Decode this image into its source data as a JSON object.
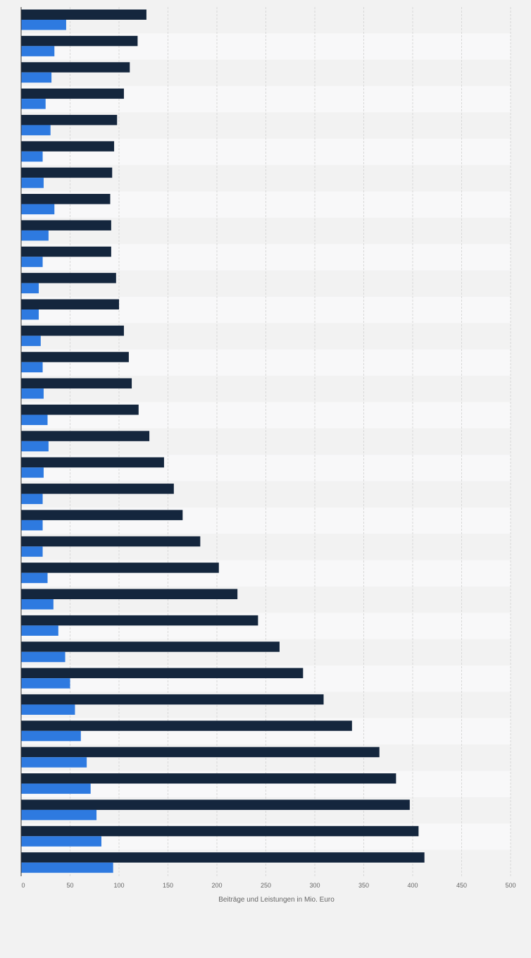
{
  "chart_data": {
    "type": "bar",
    "orientation": "horizontal",
    "xlabel": "Beiträge und Leistungen in Mio. Euro",
    "xlim": [
      0,
      500
    ],
    "xticks": [
      "0",
      "50",
      "100",
      "150",
      "200",
      "250",
      "300",
      "350",
      "400",
      "450",
      "500"
    ],
    "grid": true,
    "colors": {
      "series1": "#14263d",
      "series2": "#2e7ae0",
      "band_dark": "#f2f2f2",
      "band_light": "#f8f8f9",
      "grid": "#d8d8d8",
      "axis": "#333333"
    },
    "series": [
      {
        "color": "#14263d",
        "values": [
          128,
          119,
          111,
          105,
          98,
          95,
          93,
          91,
          92,
          92,
          97,
          100,
          105,
          110,
          113,
          120,
          131,
          146,
          156,
          165,
          183,
          202,
          221,
          242,
          264,
          288,
          309,
          338,
          366,
          383,
          397,
          406,
          412
        ]
      },
      {
        "color": "#2e7ae0",
        "values": [
          46,
          34,
          31,
          25,
          30,
          22,
          23,
          34,
          28,
          22,
          18,
          18,
          20,
          22,
          23,
          27,
          28,
          23,
          22,
          22,
          22,
          27,
          33,
          38,
          45,
          50,
          55,
          61,
          67,
          71,
          77,
          82,
          94
        ]
      }
    ]
  }
}
